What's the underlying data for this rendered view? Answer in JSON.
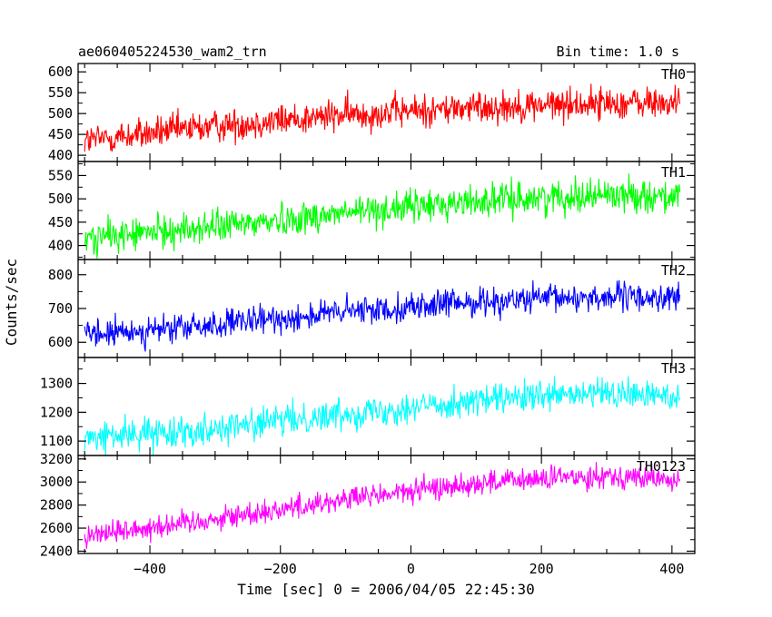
{
  "header": {
    "title": "ae060405224530_wam2_trn",
    "bin_time": "Bin time: 1.0 s"
  },
  "chart_data": {
    "type": "line",
    "xlabel": "Time [sec] 0 = 2006/04/05 22:45:30",
    "ylabel": "Counts/sec",
    "xlim": [
      -510,
      435
    ],
    "x_ticks": [
      -400,
      -200,
      0,
      200,
      400
    ],
    "x_tick_labels": [
      "−400",
      "−200",
      "0",
      "200",
      "400"
    ],
    "x_range": [
      -500,
      412
    ],
    "grid": false,
    "panels": [
      {
        "name": "TH0",
        "color": "#ff0000",
        "ylim": [
          385,
          620
        ],
        "yticks": [
          400,
          450,
          500,
          550,
          600
        ],
        "ytick_labels": [
          "400",
          "450",
          "500",
          "550",
          "600"
        ],
        "trend_x": [
          -500,
          -300,
          -100,
          100,
          300,
          412
        ],
        "trend_y": [
          435,
          470,
          497,
          515,
          525,
          525
        ],
        "noise": 28
      },
      {
        "name": "TH1",
        "color": "#00ff00",
        "ylim": [
          370,
          580
        ],
        "yticks": [
          400,
          450,
          500,
          550
        ],
        "ytick_labels": [
          "400",
          "450",
          "500",
          "550"
        ],
        "trend_x": [
          -500,
          -300,
          -100,
          100,
          300,
          412
        ],
        "trend_y": [
          415,
          440,
          470,
          495,
          510,
          505
        ],
        "noise": 25
      },
      {
        "name": "TH2",
        "color": "#0000ff",
        "ylim": [
          555,
          845
        ],
        "yticks": [
          600,
          700,
          800
        ],
        "ytick_labels": [
          "600",
          "700",
          "800"
        ],
        "trend_x": [
          -500,
          -300,
          -100,
          100,
          300,
          412
        ],
        "trend_y": [
          620,
          650,
          690,
          720,
          735,
          730
        ],
        "noise": 30
      },
      {
        "name": "TH3",
        "color": "#00ffff",
        "ylim": [
          1050,
          1390
        ],
        "yticks": [
          1100,
          1200,
          1300
        ],
        "ytick_labels": [
          "1100",
          "1200",
          "1300"
        ],
        "trend_x": [
          -500,
          -300,
          -100,
          100,
          300,
          412
        ],
        "trend_y": [
          1110,
          1145,
          1195,
          1240,
          1265,
          1255
        ],
        "noise": 38
      },
      {
        "name": "TH0123",
        "color": "#ff00ff",
        "ylim": [
          2380,
          3230
        ],
        "yticks": [
          2400,
          2600,
          2800,
          3000,
          3200
        ],
        "ytick_labels": [
          "2400",
          "2600",
          "2800",
          "3000",
          "3200"
        ],
        "trend_x": [
          -500,
          -300,
          -100,
          100,
          300,
          412
        ],
        "trend_y": [
          2540,
          2680,
          2850,
          2990,
          3060,
          3010
        ],
        "noise": 75
      }
    ]
  }
}
